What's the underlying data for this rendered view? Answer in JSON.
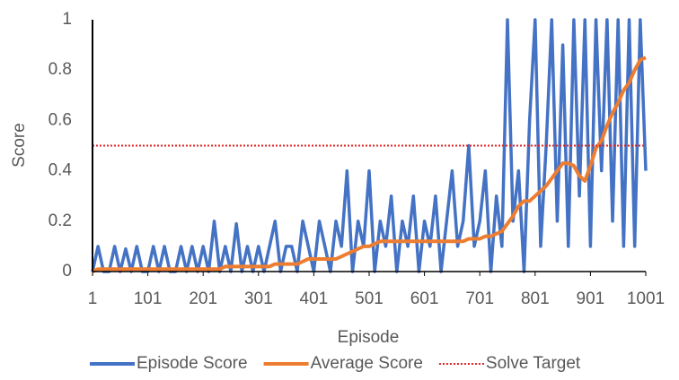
{
  "chart_data": {
    "type": "line",
    "x_label": "Episode",
    "y_label": "Score",
    "x": [
      1,
      11,
      21,
      31,
      41,
      51,
      61,
      71,
      81,
      91,
      101,
      111,
      121,
      131,
      141,
      151,
      161,
      171,
      181,
      191,
      201,
      211,
      221,
      231,
      241,
      251,
      261,
      271,
      281,
      291,
      301,
      311,
      321,
      331,
      341,
      351,
      361,
      371,
      381,
      391,
      401,
      411,
      421,
      431,
      441,
      451,
      461,
      471,
      481,
      491,
      501,
      511,
      521,
      531,
      541,
      551,
      561,
      571,
      581,
      591,
      601,
      611,
      621,
      631,
      641,
      651,
      661,
      671,
      681,
      691,
      701,
      711,
      721,
      731,
      741,
      751,
      761,
      771,
      781,
      791,
      801,
      811,
      821,
      831,
      841,
      851,
      861,
      871,
      881,
      891,
      901,
      911,
      921,
      931,
      941,
      951,
      961,
      971,
      981,
      991,
      1001
    ],
    "series": [
      {
        "name": "Episode Score",
        "color": "#4472c4",
        "width": 3.5,
        "values": [
          0,
          0.1,
          0,
          0,
          0.1,
          0,
          0.09,
          0,
          0.1,
          0,
          0,
          0.1,
          0,
          0.1,
          0,
          0,
          0.1,
          0,
          0.1,
          0,
          0.1,
          0,
          0.2,
          0,
          0.1,
          0,
          0.19,
          0,
          0.1,
          0,
          0.1,
          0,
          0.1,
          0.2,
          0,
          0.1,
          0.1,
          0,
          0.2,
          0.1,
          0,
          0.2,
          0.1,
          0,
          0.2,
          0.1,
          0.4,
          0,
          0.2,
          0.1,
          0.4,
          0,
          0.2,
          0.1,
          0.3,
          0,
          0.2,
          0.1,
          0.3,
          0,
          0.2,
          0.1,
          0.3,
          0,
          0.2,
          0.4,
          0.1,
          0.2,
          0.5,
          0.1,
          0.2,
          0.4,
          0,
          0.3,
          0.1,
          1,
          0.2,
          0.4,
          0,
          0.6,
          1,
          0.1,
          0.5,
          1,
          0.2,
          0.9,
          0.1,
          1,
          0.3,
          1,
          0.1,
          1,
          0.4,
          1,
          0.2,
          1,
          0.1,
          1,
          0.1,
          1,
          0.4
        ]
      },
      {
        "name": "Average Score",
        "color": "#ed7d31",
        "width": 4,
        "values": [
          0,
          0.01,
          0.01,
          0.01,
          0.01,
          0.01,
          0.01,
          0.01,
          0.01,
          0.01,
          0.01,
          0.01,
          0.01,
          0.01,
          0.01,
          0.01,
          0.01,
          0.01,
          0.01,
          0.01,
          0.01,
          0.01,
          0.01,
          0.01,
          0.02,
          0.02,
          0.02,
          0.02,
          0.02,
          0.02,
          0.02,
          0.02,
          0.02,
          0.03,
          0.03,
          0.03,
          0.03,
          0.03,
          0.04,
          0.05,
          0.05,
          0.05,
          0.05,
          0.05,
          0.05,
          0.06,
          0.07,
          0.08,
          0.09,
          0.1,
          0.1,
          0.11,
          0.12,
          0.12,
          0.12,
          0.12,
          0.12,
          0.12,
          0.12,
          0.12,
          0.12,
          0.12,
          0.12,
          0.12,
          0.12,
          0.12,
          0.12,
          0.12,
          0.13,
          0.13,
          0.13,
          0.14,
          0.14,
          0.15,
          0.16,
          0.19,
          0.22,
          0.26,
          0.28,
          0.28,
          0.3,
          0.32,
          0.34,
          0.37,
          0.4,
          0.43,
          0.43,
          0.42,
          0.38,
          0.36,
          0.42,
          0.49,
          0.52,
          0.58,
          0.63,
          0.67,
          0.72,
          0.75,
          0.8,
          0.84,
          0.85
        ]
      }
    ],
    "hlines": [
      {
        "name": "Solve Target",
        "value": 0.5,
        "color": "#e02020",
        "style": "dotted"
      }
    ],
    "xlim": [
      1,
      1001
    ],
    "xticks": [
      1,
      101,
      201,
      301,
      401,
      501,
      601,
      701,
      801,
      901,
      1001
    ],
    "ylim": [
      0,
      1
    ],
    "yticks": [
      0,
      0.2,
      0.4,
      0.6,
      0.8,
      1
    ],
    "grid": false,
    "legend": "bottom"
  }
}
